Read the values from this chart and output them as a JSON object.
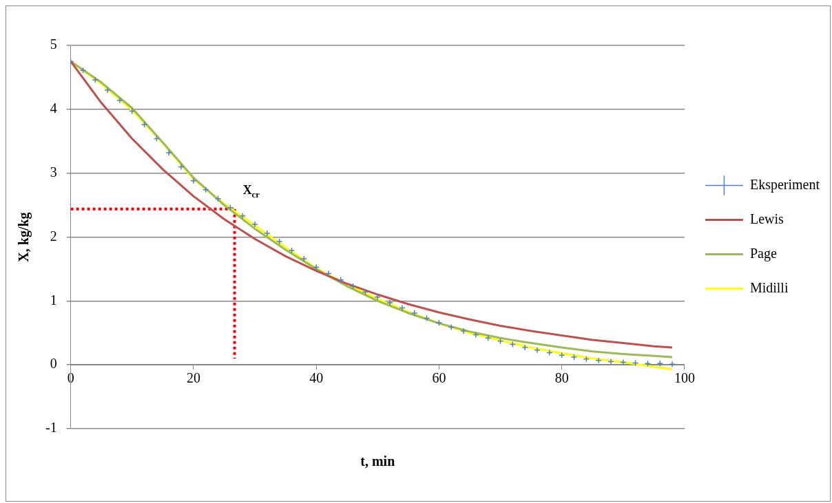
{
  "chart_data": {
    "type": "line",
    "xlabel": "t, min",
    "ylabel": "X, kg/kg",
    "xlim": [
      0,
      100
    ],
    "ylim": [
      -1,
      5
    ],
    "xticks": [
      0,
      20,
      40,
      60,
      80,
      100
    ],
    "yticks": [
      -1,
      0,
      1,
      2,
      3,
      4,
      5
    ],
    "grid": "y",
    "legend": "right",
    "annotations": [
      {
        "text": "X$_{cr}$",
        "x": 26.7,
        "y": 2.44
      }
    ],
    "series": [
      {
        "name": "Eksperiment",
        "type": "scatter",
        "marker": "cross",
        "color": "#4f81bd",
        "x": [
          0,
          2,
          4,
          6,
          8,
          10,
          12,
          14,
          16,
          18,
          20,
          22,
          24,
          26,
          28,
          30,
          32,
          34,
          36,
          38,
          40,
          42,
          44,
          46,
          48,
          50,
          52,
          54,
          56,
          58,
          60,
          62,
          64,
          66,
          68,
          70,
          72,
          74,
          76,
          78,
          80,
          82,
          84,
          86,
          88,
          90,
          92,
          94,
          96,
          98
        ],
        "values": [
          4.75,
          4.61,
          4.46,
          4.3,
          4.14,
          3.97,
          3.76,
          3.54,
          3.32,
          3.1,
          2.88,
          2.74,
          2.6,
          2.46,
          2.33,
          2.2,
          2.06,
          1.93,
          1.79,
          1.66,
          1.53,
          1.43,
          1.33,
          1.23,
          1.14,
          1.06,
          0.97,
          0.89,
          0.81,
          0.73,
          0.66,
          0.59,
          0.53,
          0.47,
          0.42,
          0.37,
          0.32,
          0.27,
          0.23,
          0.19,
          0.15,
          0.12,
          0.09,
          0.07,
          0.05,
          0.04,
          0.03,
          0.02,
          0.02,
          0.01
        ]
      },
      {
        "name": "Lewis",
        "type": "line",
        "marker": "none",
        "color": "#c0504d",
        "x": [
          0,
          5,
          10,
          15,
          20,
          25,
          30,
          35,
          40,
          45,
          50,
          55,
          60,
          65,
          70,
          75,
          80,
          85,
          90,
          95,
          98
        ],
        "values": [
          4.75,
          4.1,
          3.54,
          3.06,
          2.64,
          2.28,
          1.97,
          1.7,
          1.47,
          1.27,
          1.1,
          0.95,
          0.82,
          0.71,
          0.61,
          0.53,
          0.46,
          0.39,
          0.34,
          0.29,
          0.27
        ]
      },
      {
        "name": "Page",
        "type": "line",
        "marker": "none",
        "color": "#9bbb59",
        "x": [
          0,
          5,
          10,
          15,
          20,
          25,
          30,
          35,
          40,
          45,
          50,
          55,
          60,
          65,
          70,
          75,
          80,
          85,
          90,
          95,
          98
        ],
        "values": [
          4.75,
          4.42,
          4.02,
          3.48,
          2.93,
          2.5,
          2.13,
          1.8,
          1.5,
          1.23,
          1.0,
          0.81,
          0.65,
          0.52,
          0.42,
          0.34,
          0.27,
          0.21,
          0.17,
          0.14,
          0.12
        ]
      },
      {
        "name": "Midilli",
        "type": "line",
        "marker": "none",
        "color": "#ffff00",
        "x": [
          0,
          5,
          10,
          15,
          20,
          25,
          30,
          35,
          40,
          45,
          50,
          55,
          60,
          65,
          70,
          75,
          80,
          85,
          90,
          95,
          98
        ],
        "values": [
          4.75,
          4.4,
          3.99,
          3.47,
          2.91,
          2.52,
          2.18,
          1.84,
          1.51,
          1.26,
          1.03,
          0.83,
          0.65,
          0.5,
          0.38,
          0.27,
          0.18,
          0.1,
          0.04,
          -0.03,
          -0.07
        ]
      },
      {
        "type": "line",
        "marker": "none",
        "line_style": "dotted",
        "color": "#ff0000",
        "x": [
          0,
          26.7
        ],
        "values": [
          2.44,
          2.44
        ]
      },
      {
        "type": "line",
        "marker": "none",
        "line_style": "dotted",
        "color": "#ff0000",
        "x": [
          26.7,
          26.7
        ],
        "values": [
          2.44,
          0.1
        ]
      }
    ]
  }
}
